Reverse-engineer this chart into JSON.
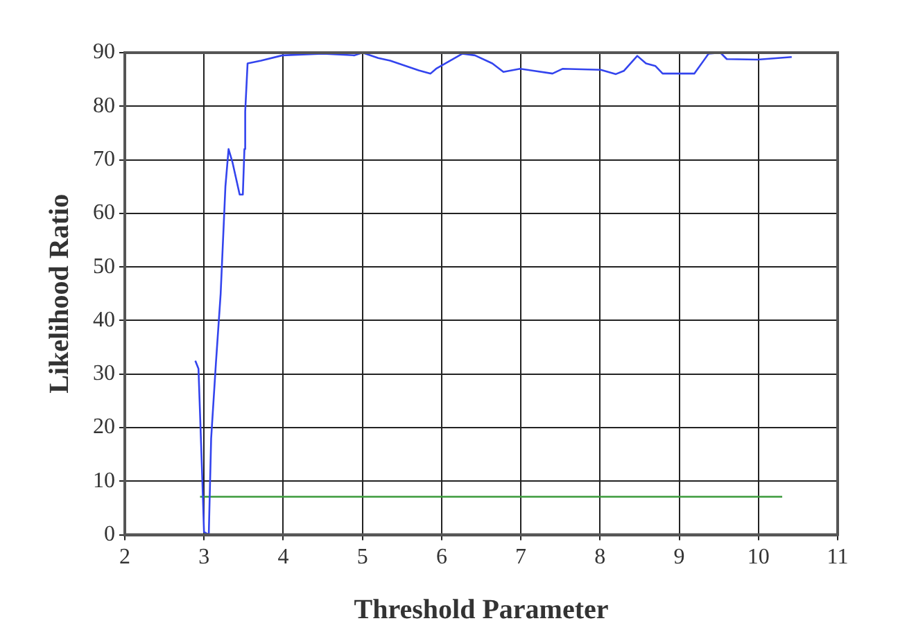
{
  "chart_data": {
    "type": "line",
    "xlabel": "Threshold Parameter",
    "ylabel": "Likelihood Ratio",
    "xlim": [
      2,
      11
    ],
    "xticks": [
      2,
      3,
      4,
      5,
      6,
      7,
      8,
      9,
      10,
      11
    ],
    "ylim": [
      0,
      90
    ],
    "yticks": [
      0,
      10,
      20,
      30,
      40,
      50,
      60,
      70,
      80,
      90
    ],
    "grid": true,
    "series": [
      {
        "color": "#3344ee",
        "x": [
          2.89,
          2.93,
          2.98,
          3.0,
          3.06,
          3.09,
          3.15,
          3.21,
          3.27,
          3.31,
          3.36,
          3.45,
          3.49,
          3.51,
          3.52,
          3.55,
          3.72,
          3.99,
          4.5,
          4.9,
          5.0,
          5.2,
          5.35,
          5.71,
          5.86,
          5.93,
          6.26,
          6.42,
          6.64,
          6.78,
          6.99,
          7.4,
          7.53,
          8.01,
          8.2,
          8.3,
          8.47,
          8.58,
          8.7,
          8.79,
          9.19,
          9.37,
          9.52,
          9.6,
          9.99,
          10.42
        ],
        "values": [
          32.5,
          31,
          9.7,
          0.5,
          0,
          18,
          32,
          45,
          65,
          72,
          69.5,
          63.5,
          63.5,
          72,
          79,
          88,
          88.5,
          89.5,
          89.8,
          89.5,
          90,
          89,
          88.5,
          86.7,
          86.1,
          87,
          89.8,
          89.5,
          88,
          86.4,
          87,
          86.1,
          87,
          86.8,
          86,
          86.6,
          89.4,
          88,
          87.5,
          86.1,
          86.1,
          89.8,
          90,
          88.8,
          88.7,
          89.2
        ]
      },
      {
        "color": "#3a9a3a",
        "x": [
          2.95,
          10.3
        ],
        "values": [
          7.1,
          7.1
        ]
      }
    ]
  }
}
